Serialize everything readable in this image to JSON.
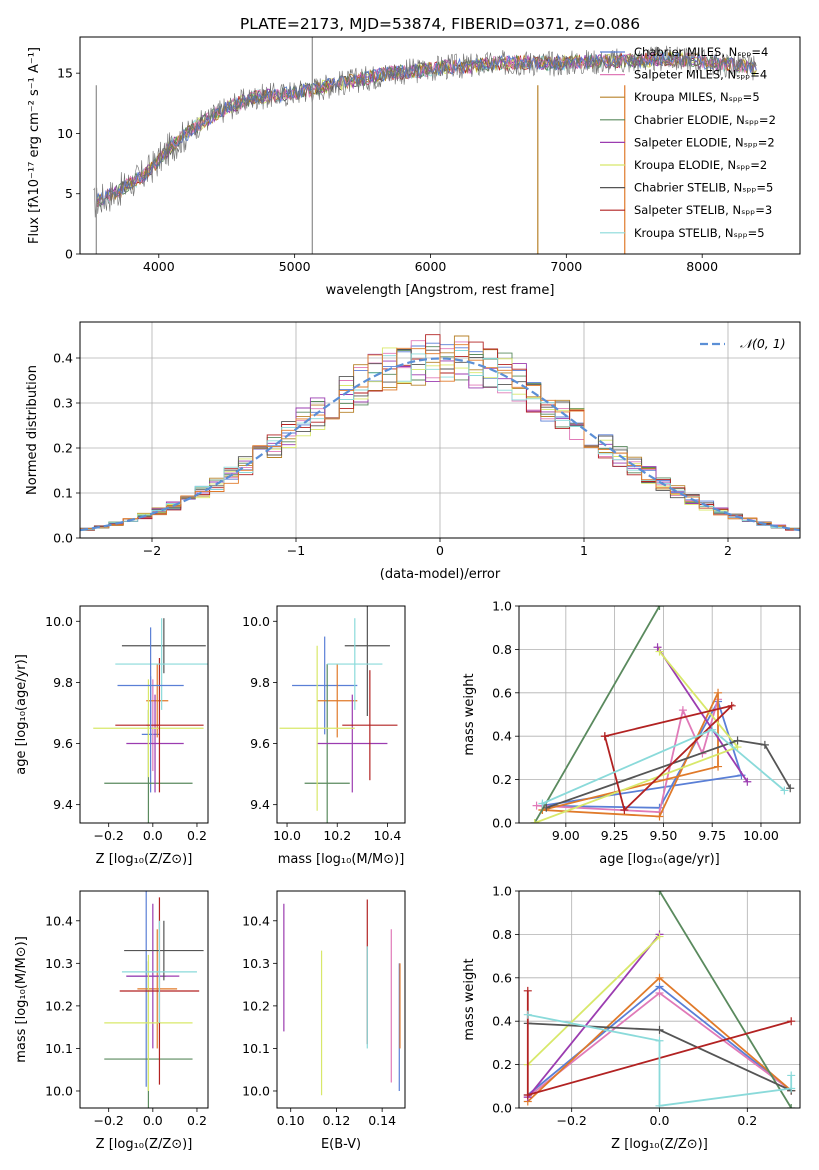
{
  "figure": {
    "title": "PLATE=2173, MJD=53874, FIBERID=0371, z=0.086"
  },
  "chart_data": [
    {
      "id": "spectrum",
      "type": "line",
      "xlabel": "wavelength [Angstrom, rest frame]",
      "ylabel": "Flux [fλ10⁻¹⁷ erg cm⁻² s⁻¹ A⁻¹]",
      "xlim": [
        3420,
        8720
      ],
      "ylim": [
        0,
        18
      ],
      "xticks": [
        4000,
        5000,
        6000,
        7000,
        8000
      ],
      "yticks": [
        0,
        5,
        10,
        15
      ],
      "grid": false,
      "legend_position": "top-right",
      "series": [
        {
          "name": "Chabrier MILES, Nₛₚₚ=4",
          "color": "#5a7fd6"
        },
        {
          "name": "Salpeter MILES, Nₛₚₚ=4",
          "color": "#e07ab8"
        },
        {
          "name": "Kroupa MILES, Nₛₚₚ=5",
          "color": "#b7822a"
        },
        {
          "name": "Chabrier ELODIE, Nₛₚₚ=2",
          "color": "#5a8a5e"
        },
        {
          "name": "Salpeter ELODIE, Nₛₚₚ=2",
          "color": "#9b3cb0"
        },
        {
          "name": "Kroupa ELODIE, Nₛₚₚ=2",
          "color": "#d8e86a"
        },
        {
          "name": "Chabrier STELIB, Nₛₚₚ=5",
          "color": "#555555"
        },
        {
          "name": "Salpeter STELIB, Nₛₚₚ=3",
          "color": "#b22222"
        },
        {
          "name": "Kroupa STELIB, Nₛₚₚ=5",
          "color": "#8adada"
        }
      ],
      "continuum_x": [
        3520,
        3700,
        3900,
        4000,
        4100,
        4300,
        4500,
        4700,
        4900,
        5100,
        5300,
        5500,
        5700,
        5900,
        6100,
        6300,
        6500,
        6700,
        6900,
        7100,
        7300,
        7500,
        7700,
        7900,
        8100,
        8300,
        8400
      ],
      "continuum_y": [
        4.2,
        5.2,
        6.6,
        7.8,
        9.0,
        10.8,
        12.1,
        13.0,
        13.2,
        13.6,
        14.1,
        14.5,
        15.0,
        15.2,
        15.5,
        15.6,
        15.8,
        15.9,
        15.8,
        15.9,
        16.0,
        16.0,
        16.2,
        16.1,
        15.8,
        15.6,
        15.4
      ],
      "spikes_x": [
        5130,
        6790,
        7430,
        3540
      ]
    },
    {
      "id": "residuals",
      "type": "histogram",
      "xlabel": "(data-model)/error",
      "ylabel": "Normed distribution",
      "xlim": [
        -2.5,
        2.5
      ],
      "ylim": [
        0,
        0.48
      ],
      "xticks": [
        -2,
        -1,
        0,
        1,
        2
      ],
      "yticks": [
        0.0,
        0.1,
        0.2,
        0.3,
        0.4
      ],
      "grid": true,
      "legend_position": "top-right",
      "legend": "𝒩(0, 1)",
      "bin_width": 0.1,
      "gaussian": {
        "mean": 0,
        "sigma": 1,
        "color": "#5b8fd6"
      }
    },
    {
      "id": "age-vs-Z",
      "type": "errorbar",
      "xlabel": "Z [log₁₀(Z/Z⊙)]",
      "ylabel": "age  [log₁₀(age/yr)]",
      "xlim": [
        -0.33,
        0.25
      ],
      "ylim": [
        9.34,
        10.05
      ],
      "xticks": [
        -0.2,
        0.0,
        0.2
      ],
      "yticks": [
        9.4,
        9.6,
        9.8,
        10.0
      ],
      "points": [
        {
          "x": -0.01,
          "y": 9.63,
          "xerr": 0.04,
          "yerr": 0.19,
          "color": "#5a7fd6"
        },
        {
          "x": 0.0,
          "y": 9.66,
          "xerr": 0.03,
          "yerr": 0.15,
          "color": "#e07ab8"
        },
        {
          "x": 0.02,
          "y": 9.74,
          "xerr": 0.05,
          "yerr": 0.12,
          "color": "#e07a2a"
        },
        {
          "x": -0.02,
          "y": 9.47,
          "xerr": 0.2,
          "yerr": 0.24,
          "color": "#5a8a5e"
        },
        {
          "x": 0.01,
          "y": 9.6,
          "xerr": 0.13,
          "yerr": 0.16,
          "color": "#9b3cb0"
        },
        {
          "x": -0.02,
          "y": 9.65,
          "xerr": 0.25,
          "yerr": 0.16,
          "color": "#d8e86a"
        },
        {
          "x": 0.05,
          "y": 9.92,
          "xerr": 0.19,
          "yerr": 0.09,
          "color": "#555555"
        },
        {
          "x": 0.03,
          "y": 9.66,
          "xerr": 0.2,
          "yerr": 0.22,
          "color": "#b22222"
        },
        {
          "x": 0.04,
          "y": 9.86,
          "xerr": 0.21,
          "yerr": 0.15,
          "color": "#8adada"
        },
        {
          "x": -0.01,
          "y": 9.79,
          "xerr": 0.15,
          "yerr": 0.19,
          "color": "#5a7fd6"
        }
      ]
    },
    {
      "id": "age-vs-mass",
      "type": "errorbar",
      "xlabel": "mass [log₁₀(M/M⊙)]",
      "ylabel": "",
      "xlim": [
        9.96,
        10.47
      ],
      "ylim": [
        9.34,
        10.05
      ],
      "xticks": [
        10.0,
        10.2,
        10.4
      ],
      "yticks": [
        9.4,
        9.6,
        9.8,
        10.0
      ],
      "points": [
        {
          "x": 10.15,
          "y": 9.79,
          "xerr": 0.13,
          "yerr": 0.16,
          "color": "#5a7fd6"
        },
        {
          "x": 10.2,
          "y": 9.74,
          "xerr": 0.08,
          "yerr": 0.12,
          "color": "#e07a2a"
        },
        {
          "x": 10.16,
          "y": 9.47,
          "xerr": 0.09,
          "yerr": 0.39,
          "color": "#5a8a5e"
        },
        {
          "x": 10.26,
          "y": 9.6,
          "xerr": 0.14,
          "yerr": 0.16,
          "color": "#9b3cb0"
        },
        {
          "x": 10.12,
          "y": 9.65,
          "xerr": 0.15,
          "yerr": 0.27,
          "color": "#d8e86a"
        },
        {
          "x": 10.32,
          "y": 9.92,
          "xerr": 0.09,
          "yerr": 0.23,
          "color": "#555555"
        },
        {
          "x": 10.33,
          "y": 9.66,
          "xerr": 0.11,
          "yerr": 0.18,
          "color": "#b22222"
        },
        {
          "x": 10.27,
          "y": 9.86,
          "xerr": 0.11,
          "yerr": 0.15,
          "color": "#8adada"
        }
      ]
    },
    {
      "id": "weight-vs-age",
      "type": "line",
      "xlabel": "age  [log₁₀(age/yr)]",
      "ylabel": "mass weight",
      "xlim": [
        8.76,
        10.2
      ],
      "ylim": [
        0,
        1
      ],
      "xticks": [
        9.0,
        9.25,
        9.5,
        9.75,
        10.0
      ],
      "yticks": [
        0.0,
        0.2,
        0.4,
        0.6,
        0.8,
        1.0
      ],
      "grid": true,
      "series": [
        {
          "color": "#5a7fd6",
          "x": [
            8.88,
            9.48,
            9.78,
            9.9,
            8.88
          ],
          "y": [
            0.08,
            0.07,
            0.56,
            0.22,
            0.08
          ]
        },
        {
          "color": "#e07ab8",
          "x": [
            8.85,
            9.48,
            9.6,
            9.7,
            9.78
          ],
          "y": [
            0.08,
            0.05,
            0.52,
            0.32,
            0.57
          ]
        },
        {
          "color": "#e07a2a",
          "x": [
            8.88,
            9.48,
            9.78,
            9.78,
            8.88
          ],
          "y": [
            0.06,
            0.03,
            0.6,
            0.26,
            0.06
          ]
        },
        {
          "color": "#5a8a5e",
          "x": [
            8.84,
            9.48
          ],
          "y": [
            0.0,
            1.0
          ]
        },
        {
          "color": "#9b3cb0",
          "x": [
            9.47,
            9.93
          ],
          "y": [
            0.81,
            0.19
          ]
        },
        {
          "color": "#d8e86a",
          "x": [
            9.48,
            9.88,
            8.84
          ],
          "y": [
            0.79,
            0.35,
            0.0
          ]
        },
        {
          "color": "#555555",
          "x": [
            8.9,
            9.88,
            10.02,
            10.15
          ],
          "y": [
            0.07,
            0.38,
            0.36,
            0.16
          ]
        },
        {
          "color": "#b22222",
          "x": [
            9.2,
            9.3,
            9.85,
            9.2
          ],
          "y": [
            0.4,
            0.06,
            0.54,
            0.4
          ]
        },
        {
          "color": "#8adada",
          "x": [
            8.88,
            9.75,
            10.12
          ],
          "y": [
            0.09,
            0.43,
            0.15
          ]
        }
      ]
    },
    {
      "id": "mass-vs-Z",
      "type": "errorbar",
      "xlabel": "Z [log₁₀(Z/Z⊙)]",
      "ylabel": "mass [log₁₀(M/M⊙)]",
      "xlim": [
        -0.33,
        0.25
      ],
      "ylim": [
        9.96,
        10.47
      ],
      "xticks": [
        -0.2,
        0.0,
        0.2
      ],
      "yticks": [
        10.0,
        10.1,
        10.2,
        10.3,
        10.4
      ],
      "points": [
        {
          "x": -0.03,
          "y": 10.27,
          "xerr": 0.09,
          "yerr": 0.26,
          "color": "#5a7fd6"
        },
        {
          "x": 0.02,
          "y": 10.24,
          "xerr": 0.09,
          "yerr": 0.14,
          "color": "#e07a2a"
        },
        {
          "x": -0.02,
          "y": 10.075,
          "xerr": 0.2,
          "yerr": 0.23,
          "color": "#5a8a5e"
        },
        {
          "x": 0.0,
          "y": 10.27,
          "xerr": 0.12,
          "yerr": 0.17,
          "color": "#9b3cb0"
        },
        {
          "x": -0.02,
          "y": 10.16,
          "xerr": 0.2,
          "yerr": 0.16,
          "color": "#d8e86a"
        },
        {
          "x": 0.05,
          "y": 10.33,
          "xerr": 0.18,
          "yerr": 0.07,
          "color": "#555555"
        },
        {
          "x": 0.03,
          "y": 10.235,
          "xerr": 0.18,
          "yerr": 0.22,
          "color": "#b22222"
        },
        {
          "x": 0.03,
          "y": 10.28,
          "xerr": 0.17,
          "yerr": 0.12,
          "color": "#8adada"
        }
      ]
    },
    {
      "id": "mass-vs-ebv",
      "type": "errorbar",
      "xlabel": "E(B-V)",
      "ylabel": "",
      "xlim": [
        0.094,
        0.15
      ],
      "ylim": [
        9.96,
        10.47
      ],
      "xticks": [
        0.1,
        0.12,
        0.14
      ],
      "yticks": [
        10.0,
        10.1,
        10.2,
        10.3,
        10.4
      ],
      "points": [
        {
          "x": 0.097,
          "y": 10.29,
          "yerr": 0.15,
          "color": "#9b3cb0"
        },
        {
          "x": 0.1135,
          "y": 10.16,
          "yerr": 0.17,
          "color": "#d8e86a"
        },
        {
          "x": 0.1335,
          "y": 10.28,
          "yerr": 0.17,
          "color": "#b22222"
        },
        {
          "x": 0.1335,
          "y": 10.22,
          "yerr": 0.12,
          "color": "#8adada"
        },
        {
          "x": 0.144,
          "y": 10.2,
          "yerr": 0.18,
          "color": "#e07ab8"
        },
        {
          "x": 0.1475,
          "y": 10.15,
          "yerr": 0.15,
          "color": "#5a7fd6"
        },
        {
          "x": 0.1478,
          "y": 10.2,
          "yerr": 0.1,
          "color": "#e07a2a"
        }
      ]
    },
    {
      "id": "weight-vs-Z",
      "type": "line",
      "xlabel": "Z [log₁₀(Z/Z⊙)]",
      "ylabel": "mass weight",
      "xlim": [
        -0.32,
        0.32
      ],
      "ylim": [
        0,
        1
      ],
      "xticks": [
        -0.2,
        0.0,
        0.2
      ],
      "yticks": [
        0.0,
        0.2,
        0.4,
        0.6,
        0.8,
        1.0
      ],
      "grid": true,
      "series": [
        {
          "color": "#5a7fd6",
          "x": [
            -0.3,
            0.0,
            0.3
          ],
          "y": [
            0.06,
            0.56,
            0.08
          ]
        },
        {
          "color": "#e07ab8",
          "x": [
            -0.3,
            0.0,
            0.3
          ],
          "y": [
            0.05,
            0.53,
            0.08
          ]
        },
        {
          "color": "#e07a2a",
          "x": [
            -0.3,
            0.0,
            0.3
          ],
          "y": [
            0.03,
            0.6,
            0.08
          ]
        },
        {
          "color": "#5a8a5e",
          "x": [
            0.0,
            0.3
          ],
          "y": [
            1.0,
            0.0
          ]
        },
        {
          "color": "#9b3cb0",
          "x": [
            -0.3,
            0.0
          ],
          "y": [
            0.05,
            0.8
          ]
        },
        {
          "color": "#d8e86a",
          "x": [
            -0.3,
            0.0
          ],
          "y": [
            0.2,
            0.79
          ]
        },
        {
          "color": "#555555",
          "x": [
            -0.3,
            0.0,
            0.3
          ],
          "y": [
            0.39,
            0.36,
            0.08
          ]
        },
        {
          "color": "#b22222",
          "x": [
            -0.3,
            -0.3,
            0.3
          ],
          "y": [
            0.54,
            0.06,
            0.4
          ]
        },
        {
          "color": "#8adada",
          "x": [
            -0.3,
            0.0,
            0.0,
            0.3,
            0.3
          ],
          "y": [
            0.43,
            0.31,
            0.01,
            0.09,
            0.15
          ]
        }
      ]
    }
  ]
}
